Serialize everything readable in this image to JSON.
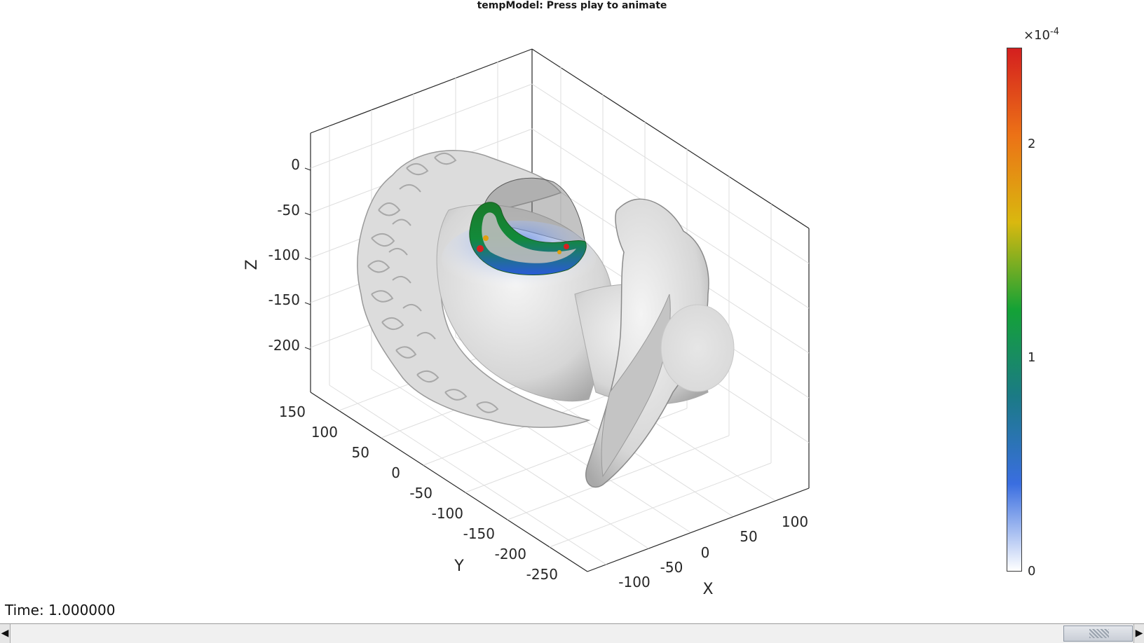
{
  "figure": {
    "title": "tempModel: Press play to animate",
    "time_label": "Time: 1.000000"
  },
  "axes": {
    "z_label": "Z",
    "y_label": "Y",
    "x_label": "X",
    "z_ticks": [
      "0",
      "-50",
      "-100",
      "-150",
      "-200"
    ],
    "y_ticks": [
      "150",
      "100",
      "50",
      "0",
      "-50",
      "-100",
      "-150",
      "-200",
      "-250"
    ],
    "x_ticks": [
      "-100",
      "-50",
      "0",
      "50",
      "100"
    ]
  },
  "colorbar": {
    "multiplier": "×10",
    "exponent": "-4",
    "ticks": [
      "0",
      "1",
      "2"
    ],
    "colors": [
      "#ffffff",
      "#3a6ee0",
      "#1b7a86",
      "#14a236",
      "#d9b80f",
      "#ec7216",
      "#d41f1f"
    ]
  },
  "scrollbar": {
    "left_arrow": "◀",
    "right_arrow": "▶"
  }
}
